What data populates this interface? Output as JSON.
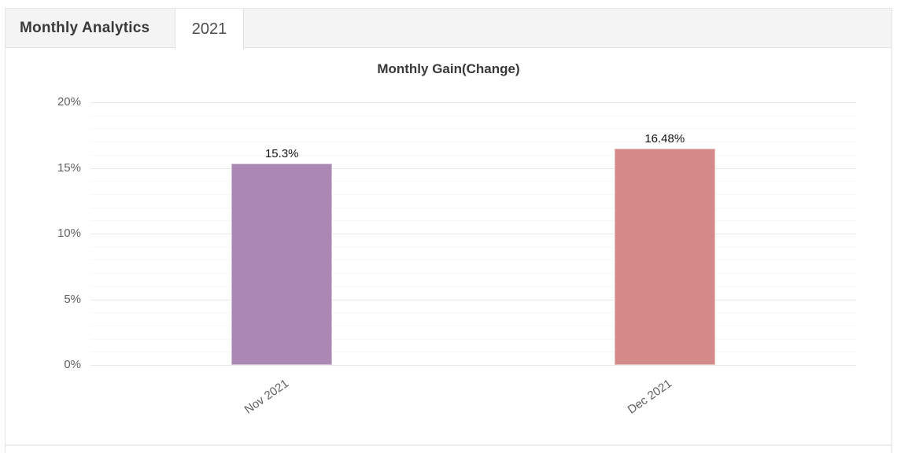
{
  "header": {
    "title": "Monthly Analytics",
    "tabs": [
      {
        "label": "2021",
        "active": true
      }
    ]
  },
  "chart_data": {
    "type": "bar",
    "title": "Monthly Gain(Change)",
    "categories": [
      "Nov 2021",
      "Dec 2021"
    ],
    "values": [
      15.3,
      16.48
    ],
    "data_labels": [
      "15.3%",
      "16.48%"
    ],
    "bar_colors": [
      "#ab88b3",
      "#d48a88"
    ],
    "ylim": [
      0,
      20
    ],
    "yticks": [
      0,
      5,
      10,
      15,
      20
    ],
    "ytick_labels": [
      "0%",
      "5%",
      "10%",
      "15%",
      "20%"
    ],
    "minor_grid_step": 1,
    "grid": "on",
    "legend": "none",
    "colors": {
      "major_gridline": "#e8e8e8",
      "minor_gridline": "#f7f7f7",
      "axis_text": "#5f5f5f",
      "tabbar_background": "#f4f4f4"
    }
  }
}
